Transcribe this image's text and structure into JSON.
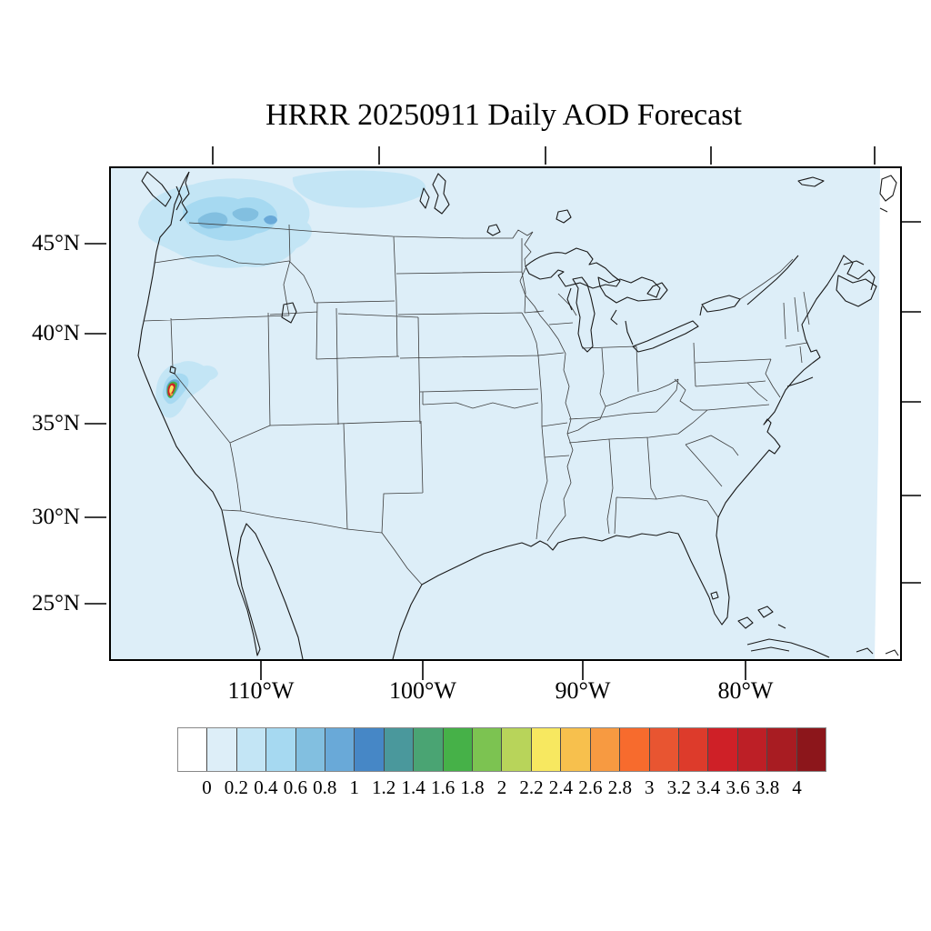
{
  "figure": {
    "title": "HRRR 20250911 Daily AOD Forecast"
  },
  "map_axes": {
    "lat_labels": [
      "45°N",
      "40°N",
      "35°N",
      "30°N",
      "25°N"
    ],
    "lon_labels": [
      "110°W",
      "100°W",
      "90°W",
      "80°W"
    ]
  },
  "colorbar": {
    "tick_labels": [
      "0",
      "0.2",
      "0.4",
      "0.6",
      "0.8",
      "1",
      "1.2",
      "1.4",
      "1.6",
      "1.8",
      "2",
      "2.2",
      "2.4",
      "2.6",
      "2.8",
      "3",
      "3.2",
      "3.4",
      "3.6",
      "3.8",
      "4"
    ],
    "colors": [
      "#ffffff",
      "#ddeef8",
      "#c3e5f5",
      "#a6d9f1",
      "#82bfe0",
      "#69a9d8",
      "#4687c6",
      "#4a989c",
      "#4aa473",
      "#46b148",
      "#7cc351",
      "#b8d45a",
      "#f7e860",
      "#f7c04d",
      "#f79a41",
      "#f76b2d",
      "#e85531",
      "#dd3b2b",
      "#cf2027",
      "#bd1f26",
      "#a81c22",
      "#8c161b"
    ],
    "value_min": 0,
    "value_max": 4,
    "bin_width": 0.2
  },
  "map_data": {
    "background_aod_bin": "0 to 0.2",
    "aod_features": [
      {
        "region": "eastern Washington / Pacific Northwest plume",
        "approx_aod_range": "0.2 to 1.0"
      },
      {
        "region": "southern Canada patch north of Montana",
        "approx_aod_range": "0.2 to 0.4"
      },
      {
        "region": "central California Sierra Nevada fire plume",
        "approx_aod_range": "0.2 to 4+"
      }
    ]
  }
}
